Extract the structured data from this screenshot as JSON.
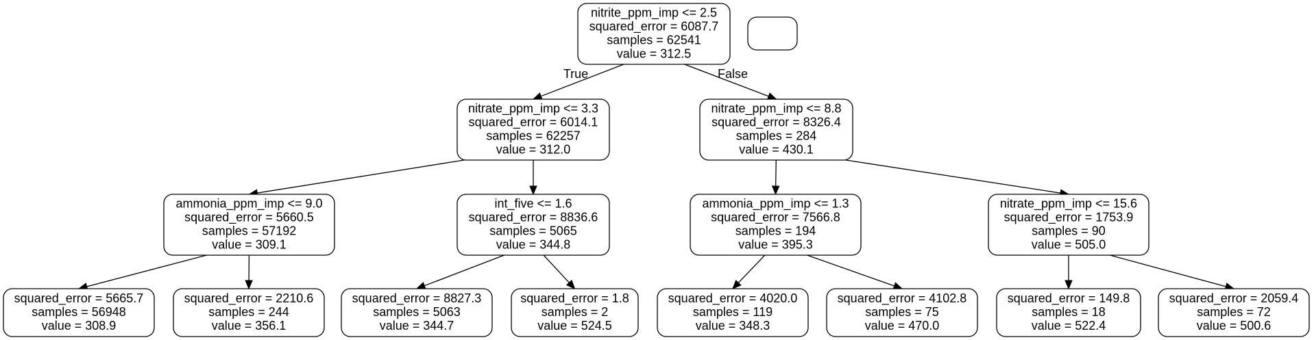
{
  "tree": {
    "nodes": {
      "n0": {
        "lines": [
          "nitrite_ppm_imp <= 2.5",
          "squared_error = 6087.7",
          "samples = 62541",
          "value = 312.5"
        ]
      },
      "n1": {
        "lines": [
          "nitrate_ppm_imp <= 3.3",
          "squared_error = 6014.1",
          "samples = 62257",
          "value = 312.0"
        ]
      },
      "n2": {
        "lines": [
          "nitrate_ppm_imp <= 8.8",
          "squared_error = 8326.4",
          "samples = 284",
          "value = 430.1"
        ]
      },
      "n3": {
        "lines": [
          "ammonia_ppm_imp <= 9.0",
          "squared_error = 5660.5",
          "samples = 57192",
          "value = 309.1"
        ]
      },
      "n4": {
        "lines": [
          "int_five <= 1.6",
          "squared_error = 8836.6",
          "samples = 5065",
          "value = 344.8"
        ]
      },
      "n5": {
        "lines": [
          "ammonia_ppm_imp <= 1.3",
          "squared_error = 7566.8",
          "samples = 194",
          "value = 395.3"
        ]
      },
      "n6": {
        "lines": [
          "nitrate_ppm_imp <= 15.6",
          "squared_error = 1753.9",
          "samples = 90",
          "value = 505.0"
        ]
      },
      "n7": {
        "lines": [
          "squared_error = 5665.7",
          "samples = 56948",
          "value = 308.9"
        ]
      },
      "n8": {
        "lines": [
          "squared_error = 2210.6",
          "samples = 244",
          "value = 356.1"
        ]
      },
      "n9": {
        "lines": [
          "squared_error = 8827.3",
          "samples = 5063",
          "value = 344.7"
        ]
      },
      "n10": {
        "lines": [
          "squared_error = 1.8",
          "samples = 2",
          "value = 524.5"
        ]
      },
      "n11": {
        "lines": [
          "squared_error = 4020.0",
          "samples = 119",
          "value = 348.3"
        ]
      },
      "n12": {
        "lines": [
          "squared_error = 4102.8",
          "samples = 75",
          "value = 470.0"
        ]
      },
      "n13": {
        "lines": [
          "squared_error = 149.8",
          "samples = 18",
          "value = 522.4"
        ]
      },
      "n14": {
        "lines": [
          "squared_error = 2059.4",
          "samples = 72",
          "value = 500.6"
        ]
      },
      "extra": {
        "lines": []
      }
    },
    "edges": [
      {
        "from": "n0",
        "to": "n1",
        "label": "True"
      },
      {
        "from": "n0",
        "to": "n2",
        "label": "False"
      },
      {
        "from": "n1",
        "to": "n3",
        "label": ""
      },
      {
        "from": "n1",
        "to": "n4",
        "label": ""
      },
      {
        "from": "n2",
        "to": "n5",
        "label": ""
      },
      {
        "from": "n2",
        "to": "n6",
        "label": ""
      },
      {
        "from": "n3",
        "to": "n7",
        "label": ""
      },
      {
        "from": "n3",
        "to": "n8",
        "label": ""
      },
      {
        "from": "n4",
        "to": "n9",
        "label": ""
      },
      {
        "from": "n4",
        "to": "n10",
        "label": ""
      },
      {
        "from": "n5",
        "to": "n11",
        "label": ""
      },
      {
        "from": "n5",
        "to": "n12",
        "label": ""
      },
      {
        "from": "n6",
        "to": "n13",
        "label": ""
      },
      {
        "from": "n6",
        "to": "n14",
        "label": ""
      }
    ]
  }
}
